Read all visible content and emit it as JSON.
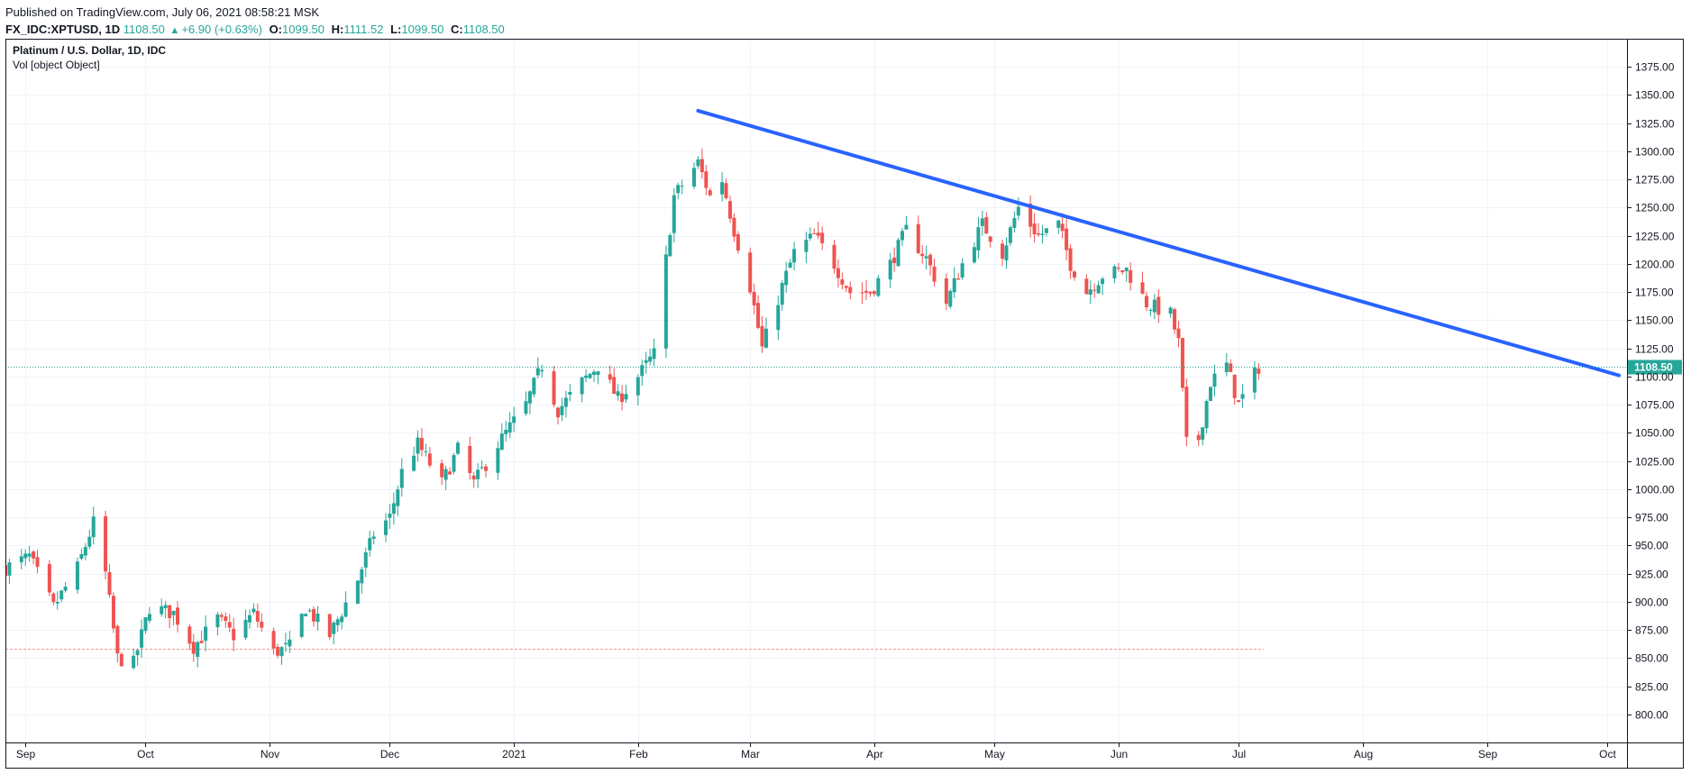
{
  "header": {
    "published": "Published on TradingView.com, July 06, 2021 08:58:21 MSK",
    "symbol": "FX_IDC:XPTUSD, 1D",
    "last": "1108.50",
    "change": "+6.90 (+0.63%)",
    "o_label": "O:",
    "o": "1099.50",
    "h_label": "H:",
    "h": "1111.52",
    "l_label": "L:",
    "l": "1099.50",
    "c_label": "C:",
    "c": "1108.50"
  },
  "legend": {
    "title": "Platinum / U.S. Dollar, 1D, IDC",
    "volume": "Vol [object Object]"
  },
  "colors": {
    "up": "#26a69a",
    "down": "#ef5350",
    "trendline": "#2962ff",
    "grid": "#f0f3fa",
    "frame": "#131722"
  },
  "chart_data": {
    "type": "candlestick",
    "title": "Platinum / U.S. Dollar, 1D, IDC",
    "ylim": [
      775,
      1400
    ],
    "y_ticks": [
      "800.00",
      "825.00",
      "850.00",
      "875.00",
      "900.00",
      "925.00",
      "950.00",
      "975.00",
      "1000.00",
      "1025.00",
      "1050.00",
      "1075.00",
      "1100.00",
      "1125.00",
      "1150.00",
      "1175.00",
      "1200.00",
      "1225.00",
      "1250.00",
      "1275.00",
      "1300.00",
      "1325.00",
      "1350.00",
      "1375.00"
    ],
    "x_ticks": [
      {
        "label": "Sep",
        "date": "2020-09-01"
      },
      {
        "label": "Oct",
        "date": "2020-10-01"
      },
      {
        "label": "Nov",
        "date": "2020-11-01"
      },
      {
        "label": "Dec",
        "date": "2020-12-01"
      },
      {
        "label": "2021",
        "date": "2021-01-01"
      },
      {
        "label": "Feb",
        "date": "2021-02-01"
      },
      {
        "label": "Mar",
        "date": "2021-03-01"
      },
      {
        "label": "Apr",
        "date": "2021-04-01"
      },
      {
        "label": "May",
        "date": "2021-05-01"
      },
      {
        "label": "Jun",
        "date": "2021-06-01"
      },
      {
        "label": "Jul",
        "date": "2021-07-01"
      },
      {
        "label": "Aug",
        "date": "2021-08-01"
      },
      {
        "label": "Sep",
        "date": "2021-09-01"
      },
      {
        "label": "Oct",
        "date": "2021-10-01"
      }
    ],
    "x_range": [
      "2020-08-27",
      "2021-10-06"
    ],
    "last_price": 1108.5,
    "last_price_label": "1108.50",
    "reference_line": 858,
    "trendline": {
      "start": {
        "date": "2021-02-16",
        "price": 1336
      },
      "end": {
        "date": "2021-10-04",
        "price": 1101
      }
    },
    "price_path": [
      [
        "2020-08-27",
        930
      ],
      [
        "2020-09-02",
        940
      ],
      [
        "2020-09-08",
        895
      ],
      [
        "2020-09-14",
        930
      ],
      [
        "2020-09-18",
        970
      ],
      [
        "2020-09-21",
        925
      ],
      [
        "2020-09-24",
        850
      ],
      [
        "2020-09-28",
        845
      ],
      [
        "2020-10-02",
        895
      ],
      [
        "2020-10-08",
        890
      ],
      [
        "2020-10-13",
        860
      ],
      [
        "2020-10-19",
        885
      ],
      [
        "2020-10-23",
        870
      ],
      [
        "2020-10-28",
        890
      ],
      [
        "2020-11-02",
        855
      ],
      [
        "2020-11-06",
        860
      ],
      [
        "2020-11-10",
        895
      ],
      [
        "2020-11-16",
        870
      ],
      [
        "2020-11-23",
        920
      ],
      [
        "2020-11-27",
        960
      ],
      [
        "2020-12-01",
        975
      ],
      [
        "2020-12-04",
        1015
      ],
      [
        "2020-12-08",
        1040
      ],
      [
        "2020-12-14",
        1005
      ],
      [
        "2020-12-18",
        1035
      ],
      [
        "2020-12-22",
        1005
      ],
      [
        "2020-12-28",
        1040
      ],
      [
        "2021-01-04",
        1075
      ],
      [
        "2021-01-08",
        1110
      ],
      [
        "2021-01-12",
        1070
      ],
      [
        "2021-01-18",
        1095
      ],
      [
        "2021-01-22",
        1110
      ],
      [
        "2021-01-27",
        1080
      ],
      [
        "2021-02-01",
        1100
      ],
      [
        "2021-02-05",
        1120
      ],
      [
        "2021-02-10",
        1260
      ],
      [
        "2021-02-12",
        1270
      ],
      [
        "2021-02-16",
        1290
      ],
      [
        "2021-02-19",
        1260
      ],
      [
        "2021-02-22",
        1275
      ],
      [
        "2021-02-25",
        1230
      ],
      [
        "2021-03-01",
        1180
      ],
      [
        "2021-03-04",
        1125
      ],
      [
        "2021-03-09",
        1180
      ],
      [
        "2021-03-12",
        1210
      ],
      [
        "2021-03-17",
        1225
      ],
      [
        "2021-03-22",
        1200
      ],
      [
        "2021-03-26",
        1175
      ],
      [
        "2021-03-31",
        1175
      ],
      [
        "2021-04-05",
        1200
      ],
      [
        "2021-04-09",
        1230
      ],
      [
        "2021-04-14",
        1205
      ],
      [
        "2021-04-19",
        1165
      ],
      [
        "2021-04-23",
        1200
      ],
      [
        "2021-04-28",
        1235
      ],
      [
        "2021-05-03",
        1210
      ],
      [
        "2021-05-07",
        1250
      ],
      [
        "2021-05-12",
        1225
      ],
      [
        "2021-05-17",
        1235
      ],
      [
        "2021-05-20",
        1200
      ],
      [
        "2021-05-24",
        1175
      ],
      [
        "2021-05-28",
        1190
      ],
      [
        "2021-06-03",
        1195
      ],
      [
        "2021-06-08",
        1165
      ],
      [
        "2021-06-11",
        1160
      ],
      [
        "2021-06-14",
        1155
      ],
      [
        "2021-06-16",
        1130
      ],
      [
        "2021-06-18",
        1040
      ],
      [
        "2021-06-21",
        1045
      ],
      [
        "2021-06-24",
        1095
      ],
      [
        "2021-06-28",
        1110
      ],
      [
        "2021-07-01",
        1075
      ],
      [
        "2021-07-06",
        1108.5
      ]
    ]
  }
}
